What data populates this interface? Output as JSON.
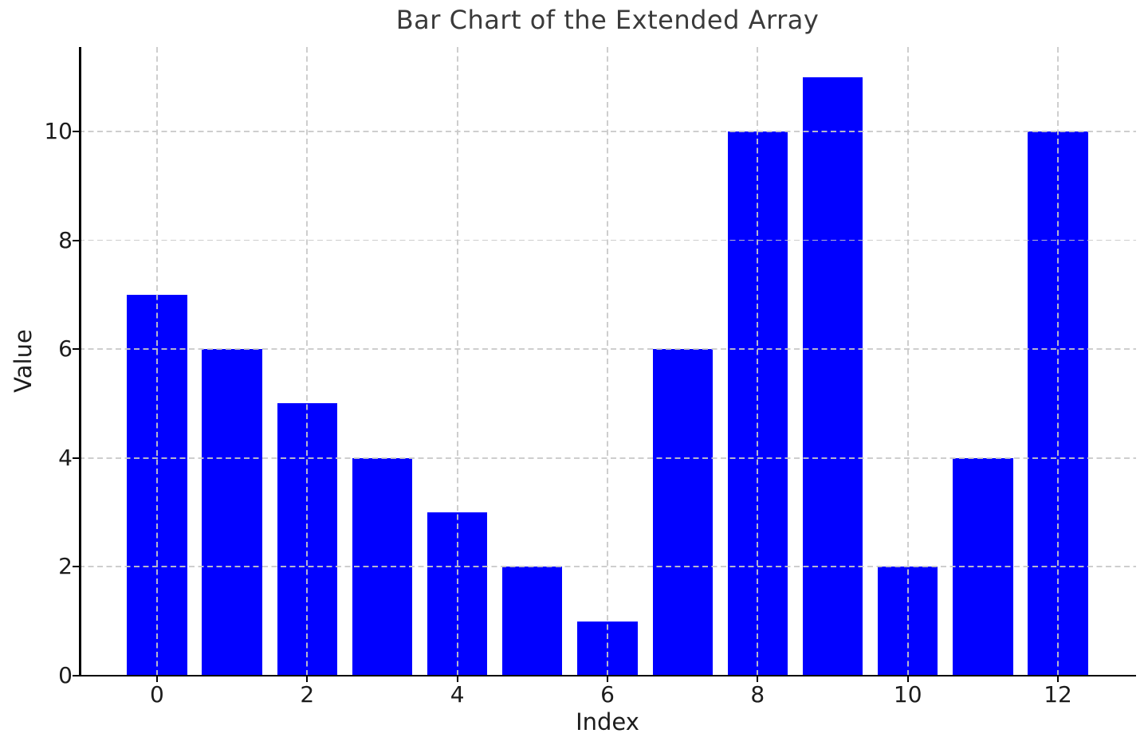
{
  "chart_data": {
    "type": "bar",
    "title": "Bar Chart of the Extended Array",
    "xlabel": "Index",
    "ylabel": "Value",
    "categories": [
      0,
      1,
      2,
      3,
      4,
      5,
      6,
      7,
      8,
      9,
      10,
      11,
      12
    ],
    "values": [
      7,
      6,
      5,
      4,
      3,
      2,
      1,
      6,
      10,
      11,
      2,
      4,
      10
    ],
    "xticks": [
      0,
      2,
      4,
      6,
      8,
      10,
      12
    ],
    "yticks": [
      0,
      2,
      4,
      6,
      8,
      10
    ],
    "xlim": [
      -1.04,
      13.04
    ],
    "ylim": [
      0,
      11.55
    ],
    "bar_width": 0.8,
    "bar_color": "#0000ff",
    "grid": true,
    "grid_style": "dashed",
    "grid_color": "#c9c9c9",
    "grid_above_bars": true,
    "spine_color": "#000000",
    "background_color": "#ffffff",
    "legend": "none"
  }
}
